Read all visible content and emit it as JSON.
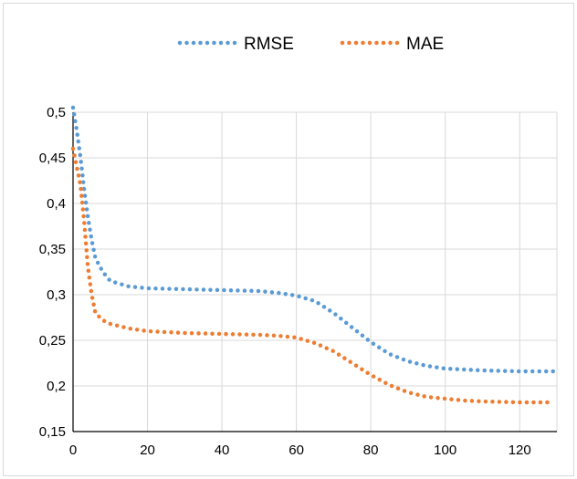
{
  "chart_data": {
    "type": "line",
    "title": "",
    "xlabel": "",
    "ylabel": "",
    "xlim": [
      0,
      130
    ],
    "ylim": [
      0.15,
      0.5
    ],
    "x_ticks": [
      0,
      20,
      40,
      60,
      80,
      100,
      120
    ],
    "x_tick_labels": [
      "0",
      "20",
      "40",
      "60",
      "80",
      "100",
      "120"
    ],
    "y_ticks": [
      0.15,
      0.2,
      0.25,
      0.3,
      0.35,
      0.4,
      0.45,
      0.5
    ],
    "y_tick_labels": [
      "0,15",
      "0,2",
      "0,25",
      "0,3",
      "0,35",
      "0,4",
      "0,45",
      "0,5"
    ],
    "grid": {
      "vertical": true,
      "horizontal": true
    },
    "legend_position": "top",
    "series": [
      {
        "name": "RMSE",
        "color": "#5b9bd5",
        "style": "dotted",
        "x": [
          0,
          1,
          2,
          3,
          4,
          5,
          6,
          8,
          10,
          15,
          20,
          30,
          40,
          50,
          55,
          60,
          65,
          70,
          75,
          80,
          85,
          90,
          95,
          100,
          105,
          110,
          120,
          129
        ],
        "values": [
          0.505,
          0.48,
          0.45,
          0.415,
          0.385,
          0.36,
          0.34,
          0.325,
          0.315,
          0.309,
          0.307,
          0.306,
          0.305,
          0.304,
          0.302,
          0.299,
          0.293,
          0.28,
          0.264,
          0.248,
          0.235,
          0.227,
          0.222,
          0.219,
          0.218,
          0.217,
          0.216,
          0.216
        ]
      },
      {
        "name": "MAE",
        "color": "#ed7d31",
        "style": "dotted",
        "x": [
          0,
          1,
          2,
          3,
          4,
          5,
          6,
          8,
          10,
          15,
          20,
          30,
          40,
          50,
          55,
          60,
          65,
          70,
          75,
          80,
          85,
          90,
          95,
          100,
          105,
          110,
          120,
          129
        ],
        "values": [
          0.46,
          0.44,
          0.42,
          0.38,
          0.33,
          0.3,
          0.28,
          0.272,
          0.268,
          0.263,
          0.26,
          0.258,
          0.257,
          0.256,
          0.255,
          0.253,
          0.247,
          0.238,
          0.225,
          0.212,
          0.201,
          0.193,
          0.188,
          0.186,
          0.184,
          0.183,
          0.182,
          0.182
        ]
      }
    ]
  }
}
